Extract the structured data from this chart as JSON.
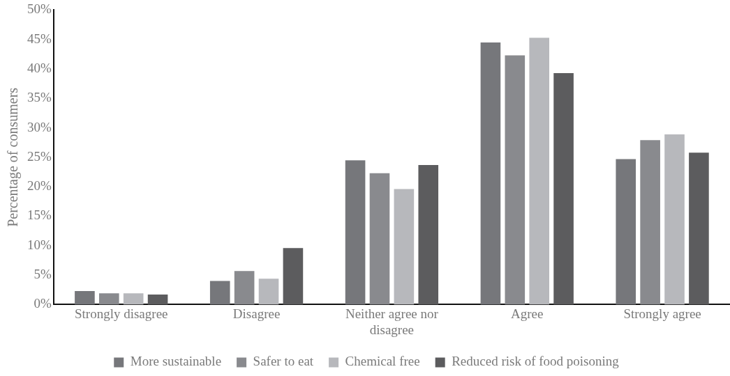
{
  "chart_data": {
    "type": "bar",
    "ylabel": "Percentage of consumers",
    "categories": [
      "Strongly disagree",
      "Disagree",
      "Neither agree nor disagree",
      "Agree",
      "Strongly agree"
    ],
    "series": [
      {
        "name": "More sustainable",
        "color": "#76777b",
        "values": [
          2.3,
          4.0,
          24.5,
          44.5,
          24.7
        ]
      },
      {
        "name": "Safer to eat",
        "color": "#898a8e",
        "values": [
          1.9,
          5.7,
          22.3,
          42.3,
          27.9
        ]
      },
      {
        "name": "Chemical free",
        "color": "#b7b8bc",
        "values": [
          1.9,
          4.4,
          19.6,
          45.3,
          28.9
        ]
      },
      {
        "name": "Reduced risk of food poisoning",
        "color": "#5c5c5e",
        "values": [
          1.7,
          9.6,
          23.7,
          39.3,
          25.8
        ]
      }
    ],
    "ylim": [
      0,
      50
    ],
    "yticks": [
      {
        "value": 0,
        "label": "0%"
      },
      {
        "value": 5,
        "label": "5%"
      },
      {
        "value": 10,
        "label": "10%"
      },
      {
        "value": 15,
        "label": "15%"
      },
      {
        "value": 20,
        "label": "20%"
      },
      {
        "value": 25,
        "label": "25%"
      },
      {
        "value": 30,
        "label": "30%"
      },
      {
        "value": 35,
        "label": "35%"
      },
      {
        "value": 40,
        "label": "40%"
      },
      {
        "value": 45,
        "label": "45%"
      },
      {
        "value": 50,
        "label": "50%"
      }
    ],
    "grid": false,
    "legend": "bottom"
  }
}
